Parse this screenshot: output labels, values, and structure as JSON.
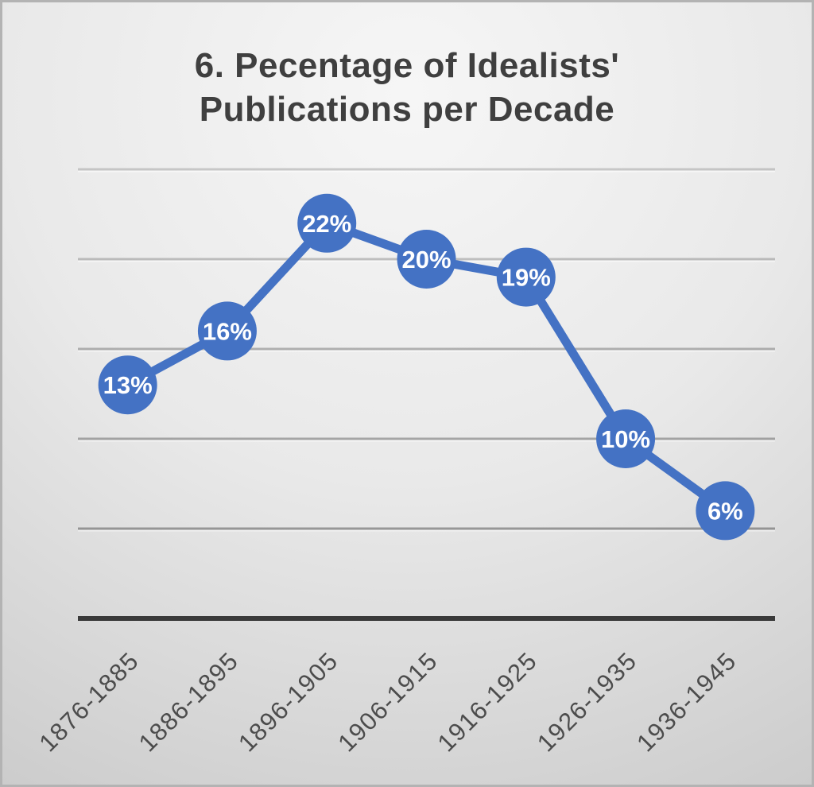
{
  "chart_data": {
    "type": "line",
    "title": "6. Pecentage of Idealists' Publications per Decade",
    "title_lines": [
      "6. Pecentage of Idealists'",
      "Publications per Decade"
    ],
    "categories": [
      "1876-1885",
      "1886-1895",
      "1896-1905",
      "1906-1915",
      "1916-1925",
      "1926-1935",
      "1936-1945"
    ],
    "values": [
      13,
      16,
      22,
      20,
      19,
      10,
      6
    ],
    "data_labels": [
      "13%",
      "16%",
      "22%",
      "20%",
      "19%",
      "10%",
      "6%"
    ],
    "xlabel": "",
    "ylabel": "",
    "ylim": [
      0,
      25
    ],
    "gridline_values": [
      5,
      10,
      15,
      20,
      25
    ],
    "y_tick_labels_visible": false,
    "grid": true,
    "legend": "none",
    "colors": {
      "accent_blue": "#4472c4",
      "data_label_text": "#ffffff",
      "title_text": "#3f3f3f",
      "tick_label_text": "#4c4c4c",
      "axis_line": "#3a3a3a",
      "gridline": "#6b6b6b",
      "gridline_highlight": "rgba(255,255,255,0.55)",
      "background_top": "#f6f6f6",
      "background_mid": "#e9e9e9",
      "background_bottom": "#c7c7c7",
      "border": "#b3b3b3"
    }
  }
}
